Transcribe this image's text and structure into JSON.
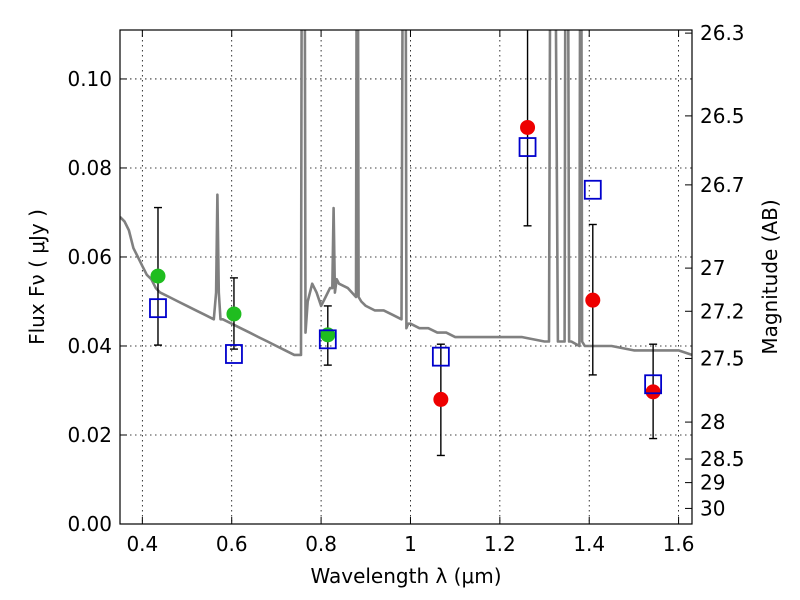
{
  "chart_data": {
    "type": "scatter",
    "title": "",
    "xlabel": "Wavelength  λ (μm)",
    "ylabel": "Flux  Fν  ( μJy )",
    "y2label": "Magnitude (AB)",
    "xlim": [
      0.35,
      1.63
    ],
    "ylim": [
      0.0,
      0.111
    ],
    "grid": true,
    "grid_style": "dotted",
    "x_ticks": [
      {
        "value": 0.4,
        "label": "0.4"
      },
      {
        "value": 0.6,
        "label": "0.6"
      },
      {
        "value": 0.8,
        "label": "0.8"
      },
      {
        "value": 1.0,
        "label": "1"
      },
      {
        "value": 1.2,
        "label": "1.2"
      },
      {
        "value": 1.4,
        "label": "1.4"
      },
      {
        "value": 1.6,
        "label": "1.6"
      }
    ],
    "y_ticks": [
      {
        "value": 0.0,
        "label": "0.00"
      },
      {
        "value": 0.02,
        "label": "0.02"
      },
      {
        "value": 0.04,
        "label": "0.04"
      },
      {
        "value": 0.06,
        "label": "0.06"
      },
      {
        "value": 0.08,
        "label": "0.08"
      },
      {
        "value": 0.1,
        "label": "0.10"
      }
    ],
    "y2_ticks": [
      {
        "flux": 0.1103,
        "label": "26.3"
      },
      {
        "flux": 0.0917,
        "label": "26.5"
      },
      {
        "flux": 0.0762,
        "label": "26.7"
      },
      {
        "flux": 0.0575,
        "label": "27"
      },
      {
        "flux": 0.0478,
        "label": "27.2"
      },
      {
        "flux": 0.0372,
        "label": "27.5"
      },
      {
        "flux": 0.0229,
        "label": "28"
      },
      {
        "flux": 0.0146,
        "label": "28.5"
      },
      {
        "flux": 0.0093,
        "label": "29"
      },
      {
        "flux": 0.0035,
        "label": "30"
      }
    ],
    "colors": {
      "sed_model": "#808080",
      "optical_points": "#1fbd1f",
      "nir_points": "#ee0000",
      "model_points": "#0000cc",
      "errorbars": "#000000"
    },
    "series": [
      {
        "kind": "line",
        "x": [
          0.35,
          0.36,
          0.37,
          0.38,
          0.39,
          0.4,
          0.41,
          0.42,
          0.43,
          0.44,
          0.46,
          0.48,
          0.5,
          0.52,
          0.54,
          0.56,
          0.565,
          0.568,
          0.571,
          0.575,
          0.58,
          0.6,
          0.62,
          0.64,
          0.66,
          0.68,
          0.7,
          0.72,
          0.74,
          0.755,
          0.758,
          0.76,
          0.762,
          0.765,
          0.77,
          0.78,
          0.79,
          0.8,
          0.81,
          0.82,
          0.825,
          0.828,
          0.831,
          0.835,
          0.84,
          0.86,
          0.878,
          0.881,
          0.884,
          0.89,
          0.9,
          0.92,
          0.94,
          0.96,
          0.98,
          0.985,
          0.988,
          0.991,
          0.995,
          1.0,
          1.02,
          1.04,
          1.06,
          1.08,
          1.1,
          1.15,
          1.2,
          1.25,
          1.3,
          1.31,
          1.315,
          1.318,
          1.32,
          1.33,
          1.345,
          1.348,
          1.351,
          1.355,
          1.36,
          1.378,
          1.381,
          1.384,
          1.39,
          1.4,
          1.45,
          1.5,
          1.55,
          1.6,
          1.63
        ],
        "y": [
          0.069,
          0.068,
          0.066,
          0.062,
          0.06,
          0.058,
          0.056,
          0.055,
          0.053,
          0.052,
          0.051,
          0.05,
          0.049,
          0.048,
          0.047,
          0.046,
          0.052,
          0.074,
          0.052,
          0.046,
          0.046,
          0.045,
          0.044,
          0.043,
          0.042,
          0.041,
          0.04,
          0.039,
          0.038,
          0.038,
          0.2,
          0.2,
          0.2,
          0.043,
          0.05,
          0.054,
          0.052,
          0.049,
          0.051,
          0.053,
          0.053,
          0.071,
          0.052,
          0.055,
          0.054,
          0.053,
          0.051,
          0.2,
          0.051,
          0.05,
          0.049,
          0.048,
          0.048,
          0.047,
          0.046,
          0.2,
          0.2,
          0.044,
          0.045,
          0.045,
          0.044,
          0.044,
          0.043,
          0.043,
          0.042,
          0.042,
          0.042,
          0.042,
          0.041,
          0.041,
          0.2,
          0.2,
          0.2,
          0.041,
          0.041,
          0.2,
          0.2,
          0.041,
          0.041,
          0.04,
          0.2,
          0.041,
          0.04,
          0.04,
          0.04,
          0.039,
          0.039,
          0.039,
          0.038
        ]
      },
      {
        "kind": "points-green",
        "name": "",
        "points": [
          {
            "x": 0.435,
            "y": 0.0557,
            "err": [
              0.0402,
              0.0711
            ]
          },
          {
            "x": 0.605,
            "y": 0.0472,
            "err": [
              0.0393,
              0.0553
            ]
          },
          {
            "x": 0.815,
            "y": 0.0425,
            "err": [
              0.0357,
              0.049
            ]
          }
        ]
      },
      {
        "kind": "points-red",
        "name": "",
        "points": [
          {
            "x": 1.068,
            "y": 0.028,
            "err": [
              0.0154,
              0.0404
            ]
          },
          {
            "x": 1.262,
            "y": 0.0891,
            "err": [
              0.067,
              0.1112
            ]
          },
          {
            "x": 1.408,
            "y": 0.0503,
            "err": [
              0.0335,
              0.0673
            ]
          },
          {
            "x": 1.543,
            "y": 0.0297,
            "err": [
              0.0192,
              0.0404
            ]
          }
        ]
      },
      {
        "kind": "squares-blue",
        "name": "",
        "points": [
          {
            "x": 0.435,
            "y": 0.0485
          },
          {
            "x": 0.605,
            "y": 0.0382
          },
          {
            "x": 0.815,
            "y": 0.0415
          },
          {
            "x": 1.068,
            "y": 0.0376
          },
          {
            "x": 1.262,
            "y": 0.0847
          },
          {
            "x": 1.408,
            "y": 0.0751
          },
          {
            "x": 1.543,
            "y": 0.0314
          }
        ]
      }
    ]
  }
}
